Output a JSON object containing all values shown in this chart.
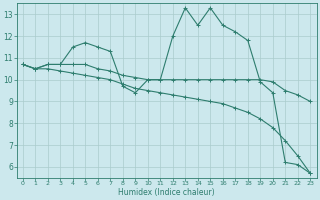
{
  "xlabel": "Humidex (Indice chaleur)",
  "xlim": [
    -0.5,
    23.5
  ],
  "ylim": [
    5.5,
    13.5
  ],
  "yticks": [
    6,
    7,
    8,
    9,
    10,
    11,
    12,
    13
  ],
  "xticks": [
    0,
    1,
    2,
    3,
    4,
    5,
    6,
    7,
    8,
    9,
    10,
    11,
    12,
    13,
    14,
    15,
    16,
    17,
    18,
    19,
    20,
    21,
    22,
    23
  ],
  "bg_color": "#cce8ed",
  "grid_color": "#aacccc",
  "line_color": "#2e7d6e",
  "series": [
    [
      10.7,
      10.5,
      10.7,
      10.7,
      11.5,
      11.7,
      11.5,
      11.3,
      9.7,
      9.4,
      10.0,
      10.0,
      12.0,
      13.3,
      12.5,
      13.3,
      12.5,
      12.2,
      11.8,
      9.9,
      9.4,
      6.2,
      6.1,
      5.7
    ],
    [
      10.7,
      10.5,
      10.7,
      10.7,
      10.7,
      10.7,
      10.5,
      10.4,
      10.2,
      10.1,
      10.0,
      10.0,
      10.0,
      10.0,
      10.0,
      10.0,
      10.0,
      10.0,
      10.0,
      10.0,
      9.9,
      9.5,
      9.3,
      9.0
    ],
    [
      10.7,
      10.5,
      10.5,
      10.4,
      10.3,
      10.2,
      10.1,
      10.0,
      9.8,
      9.6,
      9.5,
      9.4,
      9.3,
      9.2,
      9.1,
      9.0,
      8.9,
      8.7,
      8.5,
      8.2,
      7.8,
      7.2,
      6.5,
      5.7
    ]
  ]
}
